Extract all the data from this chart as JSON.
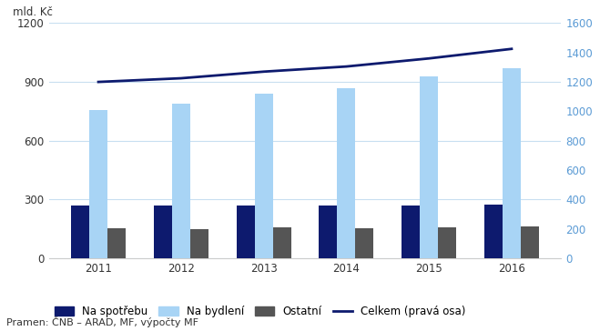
{
  "years": [
    2011,
    2012,
    2013,
    2014,
    2015,
    2016
  ],
  "na_spotrebu": [
    270,
    270,
    268,
    268,
    268,
    272
  ],
  "na_bydleni": [
    755,
    790,
    840,
    870,
    930,
    970
  ],
  "ostatni": [
    155,
    150,
    158,
    155,
    158,
    163
  ],
  "celkem": [
    1200,
    1225,
    1270,
    1305,
    1360,
    1425
  ],
  "bar_width": 0.22,
  "color_spotrebu": "#0d1a6e",
  "color_bydleni": "#a8d4f5",
  "color_ostatni": "#555555",
  "color_celkem": "#0d1a6e",
  "ylim_left": [
    0,
    1200
  ],
  "ylim_right": [
    0,
    1600
  ],
  "yticks_left": [
    0,
    300,
    600,
    900,
    1200
  ],
  "yticks_right": [
    0,
    200,
    400,
    600,
    800,
    1000,
    1200,
    1400,
    1600
  ],
  "ylabel_left": "mld. Kč",
  "source": "Pramen: ČNB – ARAD, MF, výpočty MF",
  "legend_labels": [
    "Na spotřebu",
    "Na bydlení",
    "Ostatní",
    "Celkem (pravá osa)"
  ],
  "background_color": "#ffffff",
  "grid_color": "#c8dff0",
  "right_tick_color": "#5b9bd5"
}
